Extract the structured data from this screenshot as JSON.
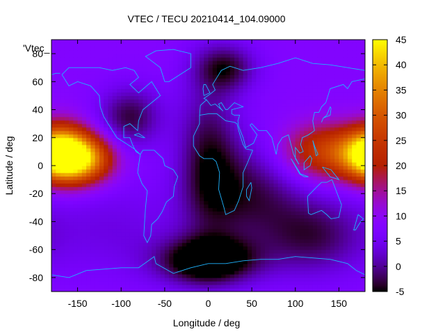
{
  "chart_data": {
    "type": "heatmap",
    "title": "VTEC / TECU 20210414_104.09000",
    "xlabel": "Longitude / deg",
    "ylabel": "Latitude / deg",
    "legend_label": "'Vtec_",
    "xlim": [
      -180,
      180
    ],
    "ylim": [
      -90,
      90
    ],
    "x_ticks": [
      -150,
      -100,
      -50,
      0,
      50,
      100,
      150
    ],
    "y_ticks": [
      -80,
      -60,
      -40,
      -20,
      0,
      20,
      40,
      60,
      80
    ],
    "colorbar": {
      "min": -5,
      "max": 45,
      "ticks": [
        -5,
        0,
        5,
        10,
        15,
        20,
        25,
        30,
        35,
        40,
        45
      ]
    },
    "grid": false,
    "background_level": 8,
    "features": [
      {
        "lon": -145,
        "lat": 5,
        "value": 38,
        "sigma_lon": 25,
        "sigma_lat": 12
      },
      {
        "lon": -165,
        "lat": 10,
        "value": 30,
        "sigma_lon": 20,
        "sigma_lat": 14
      },
      {
        "lon": 135,
        "lat": 10,
        "value": 26,
        "sigma_lon": 35,
        "sigma_lat": 14
      },
      {
        "lon": 175,
        "lat": 8,
        "value": 24,
        "sigma_lon": 20,
        "sigma_lat": 12
      },
      {
        "lon": -110,
        "lat": -45,
        "value": 4,
        "sigma_lon": 60,
        "sigma_lat": 25
      },
      {
        "lon": 0,
        "lat": -68,
        "value": -10,
        "sigma_lon": 40,
        "sigma_lat": 12
      },
      {
        "lon": 0,
        "lat": 5,
        "value": -3,
        "sigma_lon": 25,
        "sigma_lat": 40
      },
      {
        "lon": 20,
        "lat": 70,
        "value": -3,
        "sigma_lon": 25,
        "sigma_lat": 12
      },
      {
        "lon": -90,
        "lat": 35,
        "value": -3,
        "sigma_lon": 25,
        "sigma_lat": 15
      },
      {
        "lon": 50,
        "lat": -20,
        "value": -2,
        "sigma_lon": 40,
        "sigma_lat": 25
      },
      {
        "lon": 120,
        "lat": -50,
        "value": -2,
        "sigma_lon": 40,
        "sigma_lat": 20
      }
    ],
    "coastlines": [
      [
        [
          -168,
          65
        ],
        [
          -160,
          70
        ],
        [
          -140,
          70
        ],
        [
          -125,
          70
        ],
        [
          -110,
          68
        ],
        [
          -95,
          70
        ],
        [
          -85,
          68
        ],
        [
          -80,
          63
        ],
        [
          -90,
          58
        ],
        [
          -80,
          52
        ],
        [
          -65,
          60
        ],
        [
          -60,
          55
        ],
        [
          -55,
          50
        ],
        [
          -65,
          45
        ],
        [
          -75,
          40
        ],
        [
          -80,
          32
        ],
        [
          -81,
          25
        ],
        [
          -90,
          30
        ],
        [
          -97,
          28
        ],
        [
          -97,
          20
        ],
        [
          -90,
          20
        ],
        [
          -87,
          15
        ],
        [
          -83,
          10
        ],
        [
          -78,
          8
        ],
        [
          -85,
          12
        ],
        [
          -95,
          16
        ],
        [
          -105,
          20
        ],
        [
          -110,
          25
        ],
        [
          -115,
          30
        ],
        [
          -120,
          35
        ],
        [
          -124,
          42
        ],
        [
          -125,
          50
        ],
        [
          -135,
          57
        ],
        [
          -150,
          60
        ],
        [
          -160,
          57
        ],
        [
          -165,
          62
        ],
        [
          -168,
          65
        ]
      ],
      [
        [
          -78,
          8
        ],
        [
          -75,
          11
        ],
        [
          -62,
          11
        ],
        [
          -52,
          5
        ],
        [
          -50,
          0
        ],
        [
          -40,
          -3
        ],
        [
          -35,
          -8
        ],
        [
          -39,
          -15
        ],
        [
          -40,
          -22
        ],
        [
          -48,
          -26
        ],
        [
          -53,
          -33
        ],
        [
          -58,
          -38
        ],
        [
          -65,
          -42
        ],
        [
          -66,
          -50
        ],
        [
          -70,
          -55
        ],
        [
          -74,
          -50
        ],
        [
          -73,
          -40
        ],
        [
          -72,
          -30
        ],
        [
          -70,
          -18
        ],
        [
          -76,
          -13
        ],
        [
          -81,
          -5
        ],
        [
          -80,
          0
        ],
        [
          -78,
          8
        ]
      ],
      [
        [
          -10,
          36
        ],
        [
          0,
          37
        ],
        [
          10,
          37
        ],
        [
          20,
          32
        ],
        [
          30,
          31
        ],
        [
          33,
          30
        ],
        [
          35,
          25
        ],
        [
          40,
          15
        ],
        [
          43,
          12
        ],
        [
          51,
          11
        ],
        [
          45,
          2
        ],
        [
          40,
          -5
        ],
        [
          40,
          -15
        ],
        [
          35,
          -25
        ],
        [
          30,
          -32
        ],
        [
          20,
          -35
        ],
        [
          18,
          -30
        ],
        [
          12,
          -17
        ],
        [
          13,
          -5
        ],
        [
          9,
          3
        ],
        [
          5,
          5
        ],
        [
          -5,
          5
        ],
        [
          -10,
          7
        ],
        [
          -17,
          14
        ],
        [
          -17,
          21
        ],
        [
          -10,
          30
        ],
        [
          -10,
          36
        ]
      ],
      [
        [
          -10,
          36
        ],
        [
          -9,
          43
        ],
        [
          -2,
          47
        ],
        [
          -5,
          48
        ],
        [
          2,
          51
        ],
        [
          8,
          54
        ],
        [
          5,
          58
        ],
        [
          10,
          63
        ],
        [
          15,
          68
        ],
        [
          25,
          71
        ],
        [
          40,
          68
        ],
        [
          60,
          70
        ],
        [
          80,
          73
        ],
        [
          100,
          77
        ],
        [
          120,
          73
        ],
        [
          140,
          72
        ],
        [
          160,
          70
        ],
        [
          180,
          68
        ]
      ],
      [
        [
          -180,
          65
        ],
        [
          -175,
          66
        ],
        [
          -170,
          66
        ]
      ],
      [
        [
          180,
          62
        ],
        [
          165,
          60
        ],
        [
          160,
          55
        ],
        [
          155,
          58
        ],
        [
          140,
          55
        ],
        [
          135,
          45
        ],
        [
          130,
          42
        ],
        [
          127,
          38
        ],
        [
          122,
          38
        ],
        [
          120,
          32
        ],
        [
          122,
          25
        ],
        [
          115,
          22
        ],
        [
          108,
          20
        ],
        [
          106,
          15
        ],
        [
          109,
          10
        ],
        [
          105,
          9
        ],
        [
          100,
          13
        ],
        [
          100,
          5
        ],
        [
          104,
          1
        ],
        [
          98,
          8
        ],
        [
          95,
          15
        ],
        [
          92,
          22
        ],
        [
          85,
          20
        ],
        [
          80,
          15
        ],
        [
          78,
          8
        ],
        [
          73,
          20
        ],
        [
          67,
          25
        ],
        [
          58,
          25
        ],
        [
          56,
          26
        ],
        [
          50,
          30
        ],
        [
          48,
          29
        ],
        [
          56,
          22
        ],
        [
          52,
          16
        ],
        [
          43,
          13
        ],
        [
          40,
          20
        ],
        [
          35,
          28
        ],
        [
          34,
          32
        ],
        [
          36,
          36
        ],
        [
          30,
          36
        ],
        [
          27,
          37
        ],
        [
          27,
          40
        ],
        [
          40,
          42
        ],
        [
          30,
          45
        ],
        [
          22,
          40
        ],
        [
          20,
          40
        ],
        [
          15,
          45
        ],
        [
          12,
          44
        ],
        [
          14,
          41
        ],
        [
          17,
          39
        ],
        [
          8,
          44
        ],
        [
          3,
          43
        ],
        [
          -2,
          47
        ]
      ],
      [
        [
          114,
          -22
        ],
        [
          115,
          -34
        ],
        [
          118,
          -35
        ],
        [
          130,
          -32
        ],
        [
          136,
          -35
        ],
        [
          141,
          -38
        ],
        [
          150,
          -37
        ],
        [
          153,
          -28
        ],
        [
          145,
          -15
        ],
        [
          142,
          -10
        ],
        [
          136,
          -12
        ],
        [
          130,
          -12
        ],
        [
          125,
          -15
        ],
        [
          114,
          -22
        ]
      ],
      [
        [
          -180,
          -78
        ],
        [
          -160,
          -80
        ],
        [
          -140,
          -75
        ],
        [
          -120,
          -74
        ],
        [
          -100,
          -73
        ],
        [
          -80,
          -73
        ],
        [
          -62,
          -65
        ],
        [
          -60,
          -70
        ],
        [
          -40,
          -77
        ],
        [
          -20,
          -73
        ],
        [
          0,
          -70
        ],
        [
          20,
          -70
        ],
        [
          40,
          -68
        ],
        [
          60,
          -67
        ],
        [
          80,
          -67
        ],
        [
          100,
          -65
        ],
        [
          120,
          -66
        ],
        [
          140,
          -67
        ],
        [
          160,
          -70
        ],
        [
          170,
          -75
        ],
        [
          180,
          -78
        ]
      ],
      [
        [
          -50,
          60
        ],
        [
          -45,
          60
        ],
        [
          -20,
          70
        ],
        [
          -20,
          80
        ],
        [
          -40,
          83
        ],
        [
          -60,
          82
        ],
        [
          -72,
          78
        ],
        [
          -55,
          70
        ],
        [
          -50,
          60
        ]
      ],
      [
        [
          -5,
          50
        ],
        [
          2,
          52
        ],
        [
          -3,
          58
        ],
        [
          -5,
          58
        ],
        [
          -6,
          55
        ],
        [
          -5,
          50
        ]
      ],
      [
        [
          130,
          31
        ],
        [
          132,
          34
        ],
        [
          136,
          35
        ],
        [
          140,
          36
        ],
        [
          141,
          41
        ],
        [
          140,
          42
        ],
        [
          136,
          36
        ],
        [
          132,
          34
        ]
      ],
      [
        [
          95,
          5
        ],
        [
          105,
          -6
        ],
        [
          110,
          -8
        ],
        [
          115,
          -8
        ],
        [
          106,
          -6
        ],
        [
          100,
          0
        ],
        [
          95,
          5
        ]
      ],
      [
        [
          110,
          2
        ],
        [
          117,
          7
        ],
        [
          119,
          5
        ],
        [
          117,
          0
        ],
        [
          110,
          -3
        ],
        [
          110,
          2
        ]
      ],
      [
        [
          131,
          -1
        ],
        [
          141,
          -3
        ],
        [
          150,
          -10
        ],
        [
          140,
          -8
        ],
        [
          131,
          -1
        ]
      ],
      [
        [
          49,
          -12
        ],
        [
          50,
          -16
        ],
        [
          47,
          -25
        ],
        [
          44,
          -22
        ],
        [
          44,
          -17
        ],
        [
          49,
          -12
        ]
      ],
      [
        [
          172,
          -35
        ],
        [
          178,
          -38
        ],
        [
          174,
          -41
        ],
        [
          169,
          -46
        ],
        [
          167,
          -46
        ],
        [
          172,
          -35
        ]
      ],
      [
        [
          120,
          18
        ],
        [
          122,
          14
        ],
        [
          126,
          8
        ],
        [
          124,
          7
        ],
        [
          120,
          18
        ]
      ],
      [
        [
          -85,
          22
        ],
        [
          -75,
          20
        ],
        [
          -73,
          20
        ],
        [
          -80,
          23
        ],
        [
          -85,
          22
        ]
      ]
    ]
  }
}
